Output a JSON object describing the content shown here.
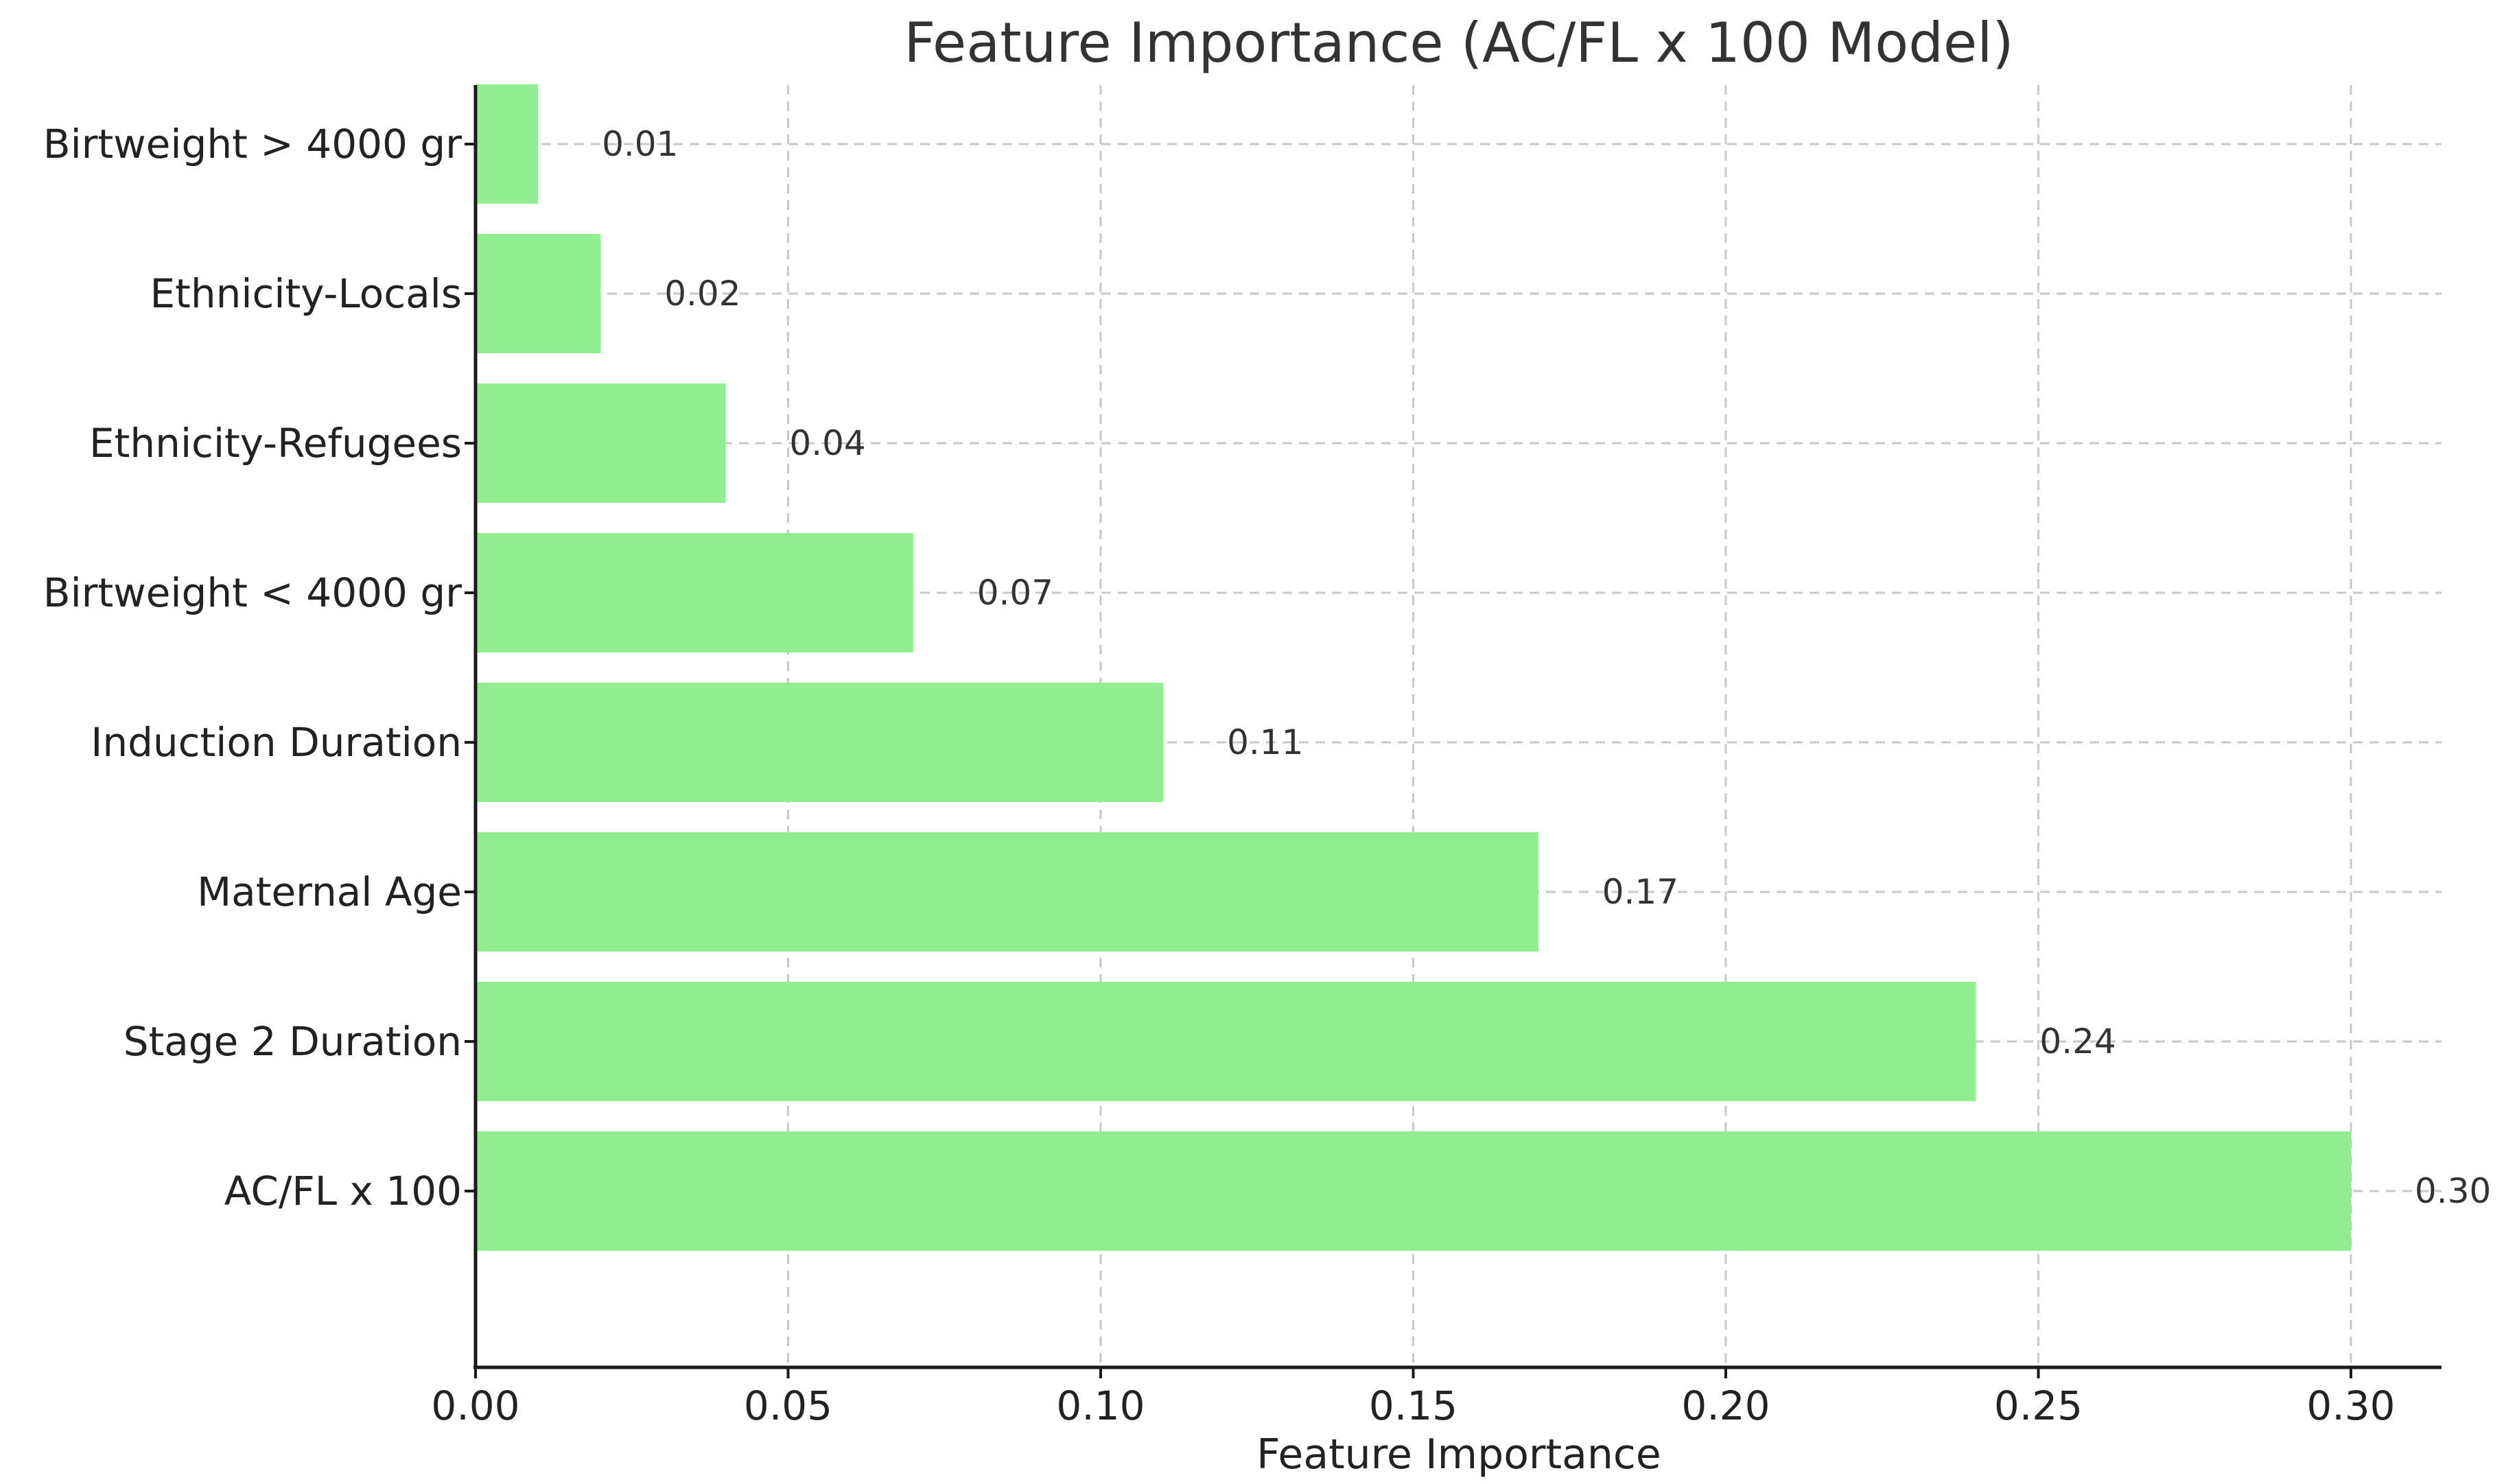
{
  "chart_data": {
    "type": "bar",
    "orientation": "horizontal",
    "title": "Feature Importance (AC/FL x 100 Model)",
    "xlabel": "Feature Importance",
    "ylabel": "",
    "xlim": [
      0,
      0.315
    ],
    "xticks": [
      0.0,
      0.05,
      0.1,
      0.15,
      0.2,
      0.25,
      0.3
    ],
    "xtick_labels": [
      "0.00",
      "0.05",
      "0.10",
      "0.15",
      "0.20",
      "0.25",
      "0.30"
    ],
    "categories": [
      "Birtweight > 4000 gr",
      "Ethnicity-Locals",
      "Ethnicity-Refugees",
      "Birtweight < 4000 gr",
      "Induction Duration",
      "Maternal Age",
      "Stage 2 Duration",
      "AC/FL x 100"
    ],
    "values": [
      0.01,
      0.02,
      0.04,
      0.07,
      0.11,
      0.17,
      0.24,
      0.3
    ],
    "value_labels": [
      "0.01",
      "0.02",
      "0.04",
      "0.07",
      "0.11",
      "0.17",
      "0.24",
      "0.30"
    ],
    "grid": true,
    "bar_color": "#90ee90"
  }
}
